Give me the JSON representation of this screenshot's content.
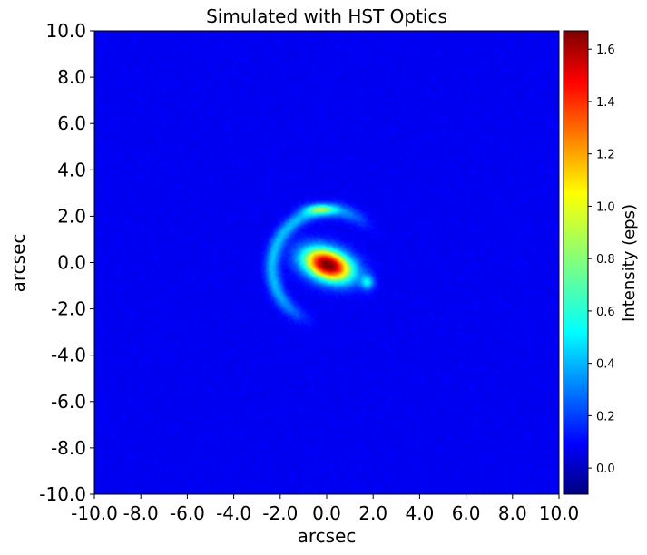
{
  "chart_data": {
    "type": "heatmap",
    "title": "Simulated with HST Optics",
    "xlabel": "arcsec",
    "ylabel": "arcsec",
    "xlim": [
      -10.0,
      10.0
    ],
    "ylim": [
      -10.0,
      10.0
    ],
    "x_ticks": [
      {
        "value": -10,
        "label": "-10.0"
      },
      {
        "value": -8,
        "label": "-8.0"
      },
      {
        "value": -6,
        "label": "-6.0"
      },
      {
        "value": -4,
        "label": "-4.0"
      },
      {
        "value": -2,
        "label": "-2.0"
      },
      {
        "value": 0,
        "label": "0.0"
      },
      {
        "value": 2,
        "label": "2.0"
      },
      {
        "value": 4,
        "label": "4.0"
      },
      {
        "value": 6,
        "label": "6.0"
      },
      {
        "value": 8,
        "label": "8.0"
      },
      {
        "value": 10,
        "label": "10.0"
      }
    ],
    "y_ticks": [
      {
        "value": 10,
        "label": "10.0"
      },
      {
        "value": 8,
        "label": "8.0"
      },
      {
        "value": 6,
        "label": "6.0"
      },
      {
        "value": 4,
        "label": "4.0"
      },
      {
        "value": 2,
        "label": "2.0"
      },
      {
        "value": 0,
        "label": "0.0"
      },
      {
        "value": -2,
        "label": "-2.0"
      },
      {
        "value": -4,
        "label": "-4.0"
      },
      {
        "value": -6,
        "label": "-6.0"
      },
      {
        "value": -8,
        "label": "-8.0"
      },
      {
        "value": -10,
        "label": "-10.0"
      }
    ],
    "colormap": "jet",
    "background_level": 0.1,
    "colorbar": {
      "label": "Intensity (eps)",
      "vmin": -0.1,
      "vmax": 1.67,
      "ticks": [
        {
          "value": 0.0,
          "label": "0.0"
        },
        {
          "value": 0.2,
          "label": "0.2"
        },
        {
          "value": 0.4,
          "label": "0.4"
        },
        {
          "value": 0.6,
          "label": "0.6"
        },
        {
          "value": 0.8,
          "label": "0.8"
        },
        {
          "value": 1.0,
          "label": "1.0"
        },
        {
          "value": 1.2,
          "label": "1.2"
        },
        {
          "value": 1.4,
          "label": "1.4"
        },
        {
          "value": 1.6,
          "label": "1.6"
        }
      ]
    },
    "features": [
      {
        "name": "central-lens-galaxy",
        "shape": "gaussian",
        "center": [
          0.05,
          -0.1
        ],
        "sigma": [
          0.75,
          0.45
        ],
        "angle_deg": -20,
        "peak": 1.62
      },
      {
        "name": "lensed-arc",
        "shape": "arc",
        "center": [
          0.1,
          -0.2
        ],
        "radius": 2.45,
        "theta_from_deg": 55,
        "theta_to_deg": 240,
        "width": 0.22,
        "peak": 0.35
      },
      {
        "name": "upper-arc-knot",
        "shape": "gaussian",
        "center": [
          -0.3,
          2.3
        ],
        "sigma": [
          0.45,
          0.15
        ],
        "angle_deg": 0,
        "peak": 0.45
      },
      {
        "name": "counter-image",
        "shape": "gaussian",
        "center": [
          1.75,
          -0.85
        ],
        "sigma": [
          0.2,
          0.22
        ],
        "angle_deg": 0,
        "peak": 0.4
      }
    ]
  }
}
